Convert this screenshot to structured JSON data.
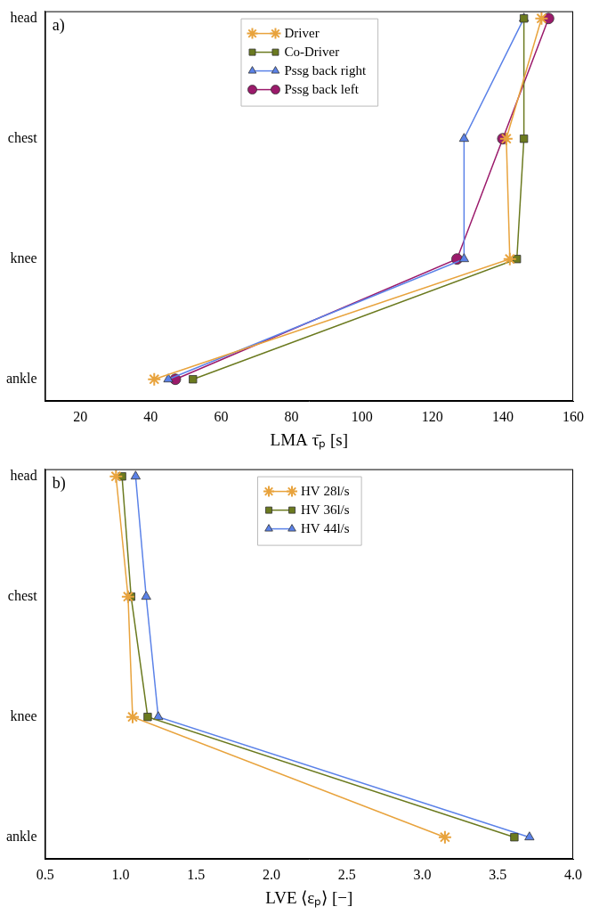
{
  "chart_data": [
    {
      "type": "line",
      "panel": "a)",
      "orientation": "horizontal",
      "x_label": "LMA τ̄ₚ [s]",
      "categories": [
        "ankle",
        "knee",
        "chest",
        "head"
      ],
      "series": [
        {
          "name": "Driver",
          "color": "#e8a33d",
          "marker": "star",
          "values": [
            41,
            142,
            141,
            151
          ]
        },
        {
          "name": "Co-Driver",
          "color": "#6b7a1f",
          "marker": "square",
          "values": [
            52,
            144,
            146,
            146
          ]
        },
        {
          "name": "Pssg back right",
          "color": "#5b82e8",
          "marker": "triangle",
          "values": [
            45,
            129,
            129,
            146
          ]
        },
        {
          "name": "Pssg back left",
          "color": "#9b1a6b",
          "marker": "circle",
          "values": [
            47,
            127,
            140,
            153
          ]
        }
      ],
      "xlim": [
        10,
        160
      ],
      "xticks": [
        20,
        40,
        60,
        80,
        100,
        120,
        140,
        160
      ],
      "legend": "upper center",
      "grid": false
    },
    {
      "type": "line",
      "panel": "b)",
      "orientation": "horizontal",
      "x_label": "LVE ⟨εₚ⟩ [−]",
      "categories": [
        "ankle",
        "knee",
        "chest",
        "head"
      ],
      "series": [
        {
          "name": "HV 28l/s",
          "color": "#e8a33d",
          "marker": "star",
          "values": [
            3.15,
            1.08,
            1.05,
            0.97
          ]
        },
        {
          "name": "HV 36l/s",
          "color": "#6b7a1f",
          "marker": "square",
          "values": [
            3.61,
            1.18,
            1.07,
            1.01
          ]
        },
        {
          "name": "HV 44l/s",
          "color": "#5b82e8",
          "marker": "triangle",
          "values": [
            3.71,
            1.25,
            1.17,
            1.1
          ]
        }
      ],
      "xlim": [
        0.5,
        4.0
      ],
      "xticks": [
        0.5,
        {
          "value": 1,
          "label": "1.0"
        },
        1.5,
        {
          "value": 2,
          "label": "2.0"
        },
        2.5,
        {
          "value": 3,
          "label": "3.0"
        },
        3.5,
        {
          "value": 4,
          "label": "4.0"
        }
      ],
      "legend": "upper center",
      "grid": false
    }
  ]
}
